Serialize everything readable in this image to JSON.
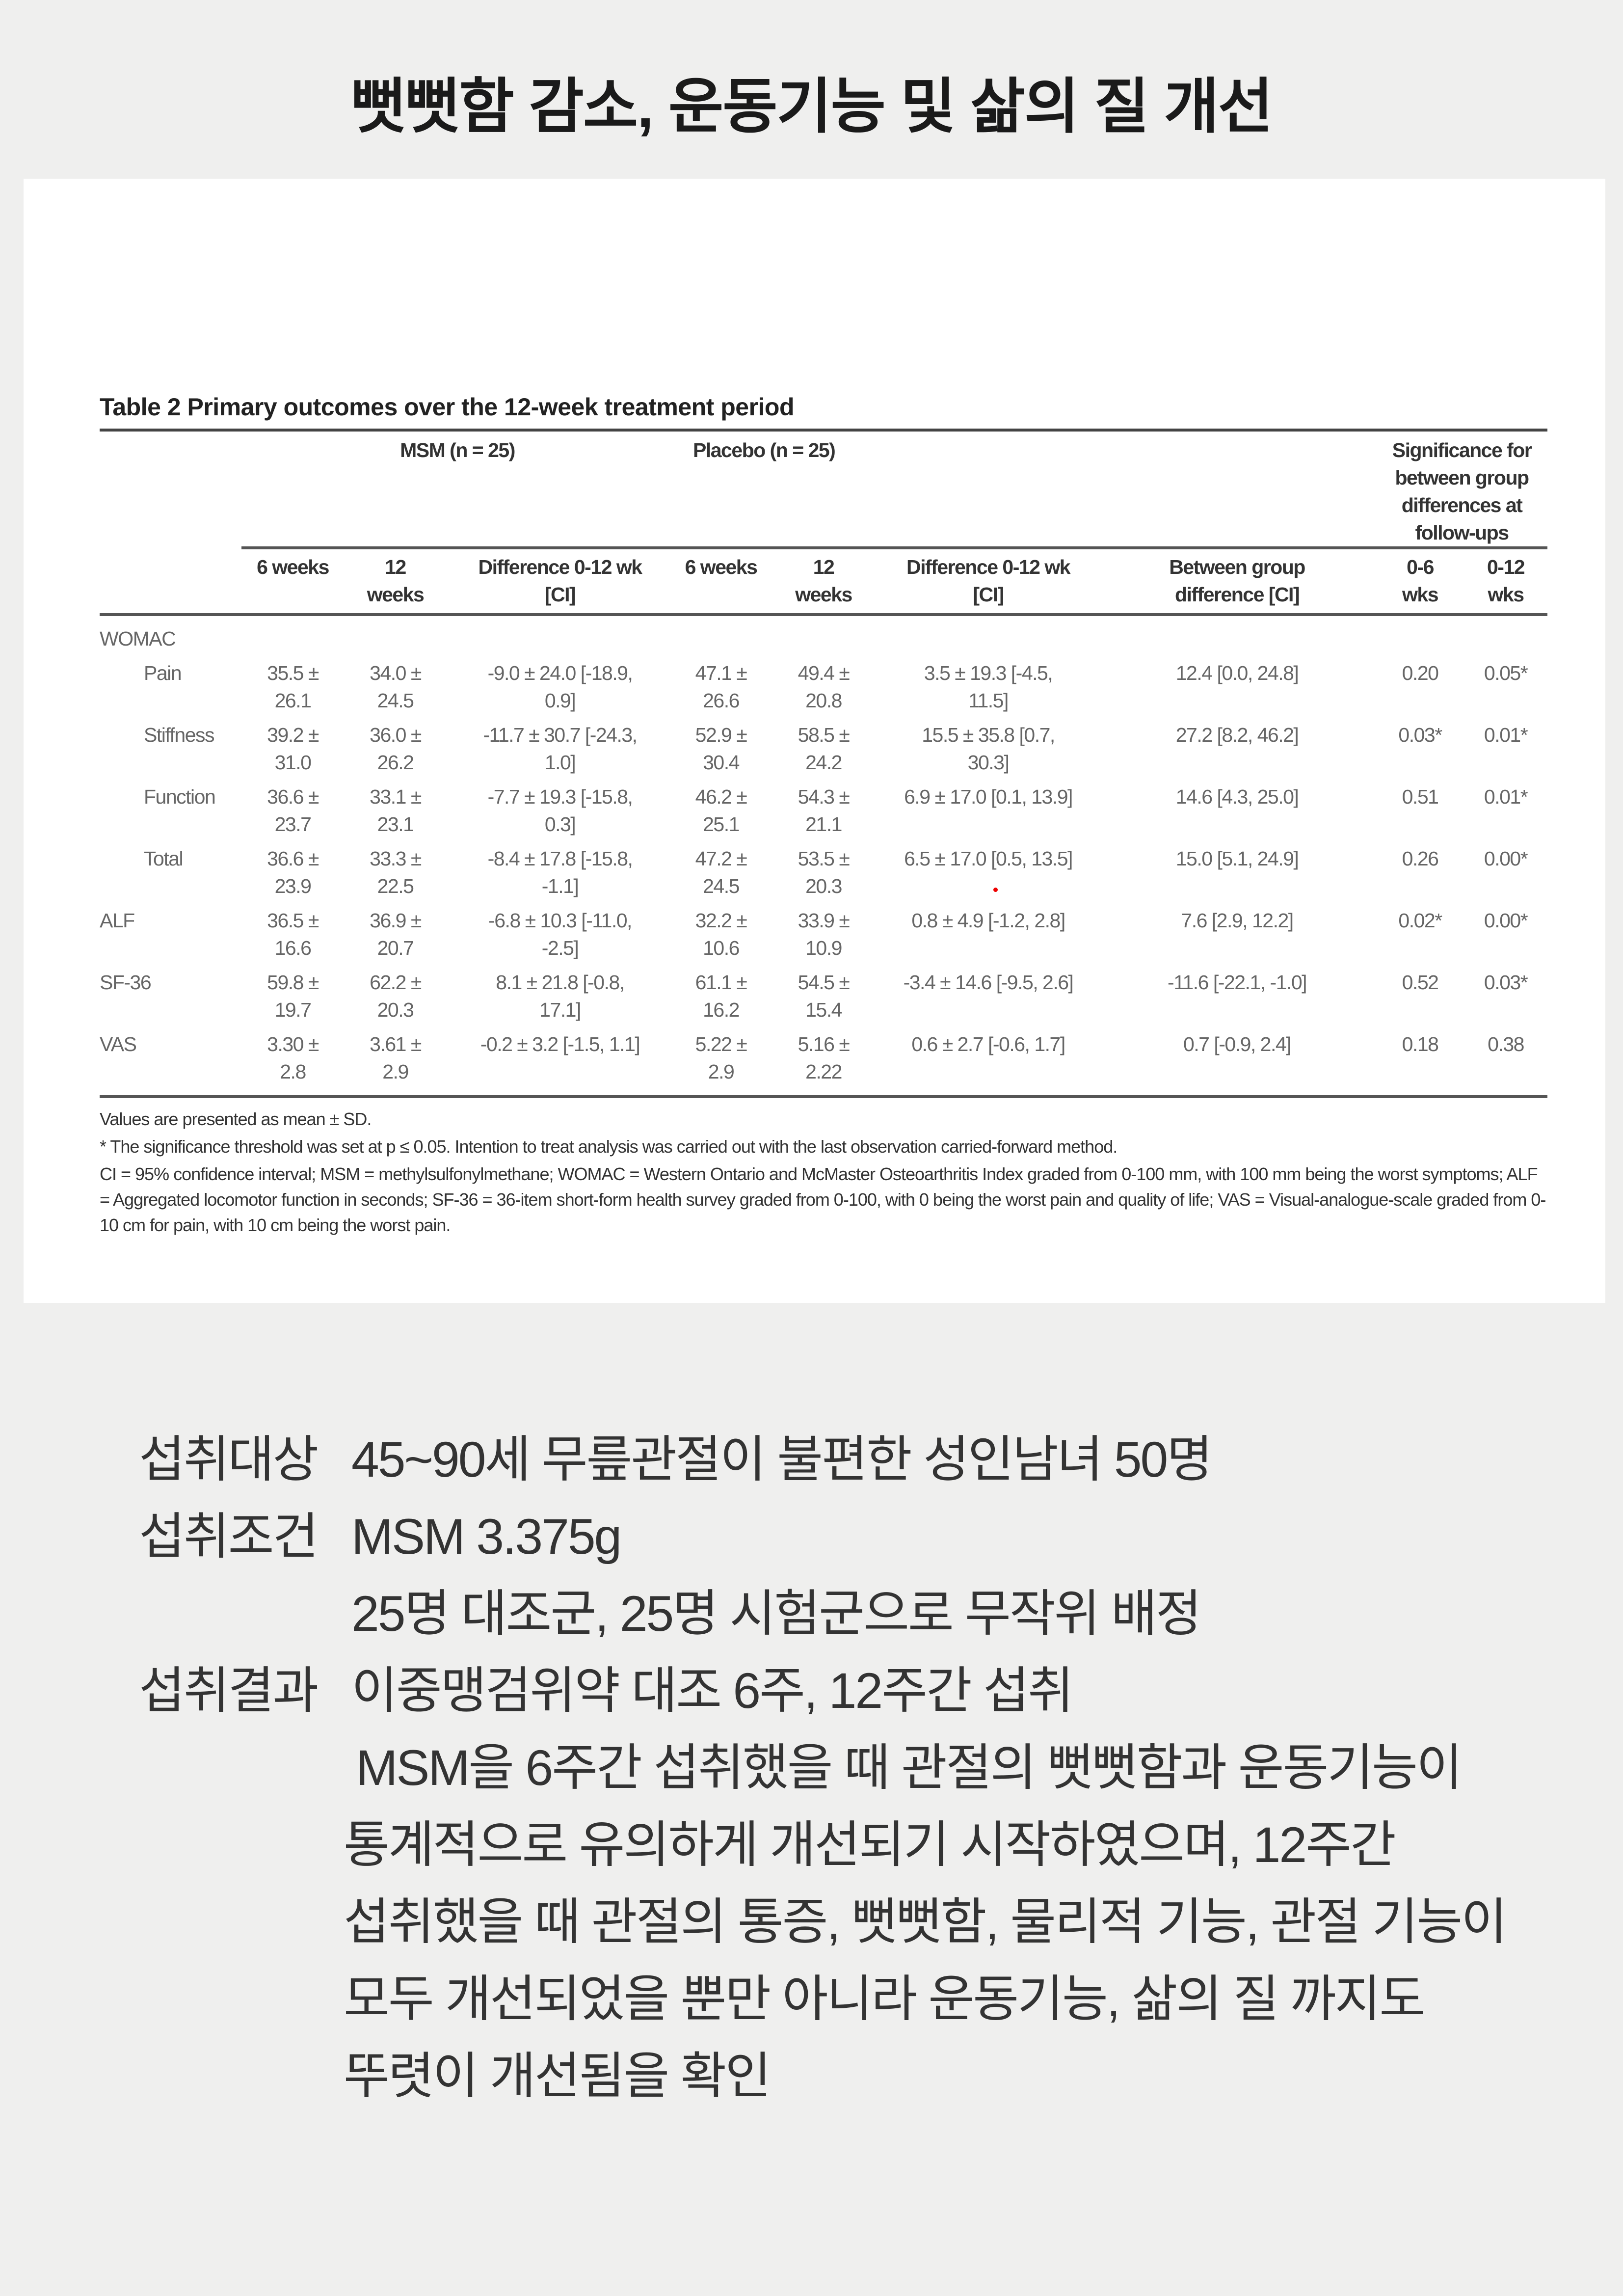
{
  "title": "뻣뻣함 감소, 운동기능 및 삶의 질 개선",
  "table": {
    "caption": "Table 2 Primary outcomes over the 12-week treatment period",
    "group_headers": {
      "msm": "MSM (n = 25)",
      "placebo": "Placebo (n = 25)",
      "significance": "Significance for\nbetween group\ndifferences at\nfollow-ups"
    },
    "columns": [
      "",
      "6 weeks",
      "12\nweeks",
      "Difference 0-12 wk\n[CI]",
      "6 weeks",
      "12\nweeks",
      "Difference 0-12 wk\n[CI]",
      "Between group\ndifference [CI]",
      "0-6\nwks",
      "0-12\nwks"
    ],
    "rows": [
      {
        "label": "WOMAC",
        "sub": false,
        "cells": [
          "",
          "",
          "",
          "",
          "",
          "",
          "",
          "",
          ""
        ]
      },
      {
        "label": "Pain",
        "sub": true,
        "cells": [
          "35.5 ±\n26.1",
          "34.0 ±\n24.5",
          "-9.0 ± 24.0 [-18.9,\n0.9]",
          "47.1 ±\n26.6",
          "49.4 ±\n20.8",
          "3.5 ± 19.3 [-4.5,\n11.5]",
          "12.4 [0.0, 24.8]",
          "0.20",
          "0.05*"
        ]
      },
      {
        "label": "Stiffness",
        "sub": true,
        "cells": [
          "39.2 ±\n31.0",
          "36.0 ±\n26.2",
          "-11.7 ± 30.7 [-24.3,\n1.0]",
          "52.9 ±\n30.4",
          "58.5 ±\n24.2",
          "15.5 ± 35.8 [0.7,\n30.3]",
          "27.2 [8.2, 46.2]",
          "0.03*",
          "0.01*"
        ]
      },
      {
        "label": "Function",
        "sub": true,
        "cells": [
          "36.6 ±\n23.7",
          "33.1 ±\n23.1",
          "-7.7 ± 19.3 [-15.8,\n0.3]",
          "46.2 ±\n25.1",
          "54.3 ±\n21.1",
          "6.9 ± 17.0 [0.1, 13.9]",
          "14.6 [4.3, 25.0]",
          "0.51",
          "0.01*"
        ]
      },
      {
        "label": "Total",
        "sub": true,
        "cells": [
          "36.6 ±\n23.9",
          "33.3 ±\n22.5",
          "-8.4 ± 17.8 [-15.8,\n-1.1]",
          "47.2 ±\n24.5",
          "53.5 ±\n20.3",
          "6.5 ± 17.0 [0.5, 13.5]",
          "15.0 [5.1, 24.9]",
          "0.26",
          "0.00*"
        ]
      },
      {
        "label": "ALF",
        "sub": false,
        "cells": [
          "36.5 ±\n16.6",
          "36.9 ±\n20.7",
          "-6.8 ± 10.3 [-11.0,\n-2.5]",
          "32.2 ±\n10.6",
          "33.9 ±\n10.9",
          "0.8 ± 4.9 [-1.2, 2.8]",
          "7.6 [2.9, 12.2]",
          "0.02*",
          "0.00*"
        ]
      },
      {
        "label": "SF-36",
        "sub": false,
        "cells": [
          "59.8 ±\n19.7",
          "62.2 ±\n20.3",
          "8.1 ± 21.8 [-0.8,\n17.1]",
          "61.1 ±\n16.2",
          "54.5 ±\n15.4",
          "-3.4 ± 14.6 [-9.5, 2.6]",
          "-11.6 [-22.1, -1.0]",
          "0.52",
          "0.03*"
        ]
      },
      {
        "label": "VAS",
        "sub": false,
        "cells": [
          "3.30 ±\n2.8",
          "3.61 ±\n2.9",
          "-0.2 ± 3.2 [-1.5, 1.1]",
          "5.22 ±\n2.9",
          "5.16 ±\n2.22",
          "0.6 ± 2.7 [-0.6, 1.7]",
          "0.7 [-0.9, 2.4]",
          "0.18",
          "0.38"
        ]
      }
    ],
    "notes": [
      "Values are presented as mean ± SD.",
      "* The significance threshold was set at p ≤ 0.05. Intention to treat analysis was carried out with the last observation carried-forward method.",
      "CI = 95% confidence interval; MSM = methylsulfonylmethane; WOMAC = Western Ontario and McMaster Osteoarthritis Index graded from 0-100 mm, with 100 mm being the worst symptoms; ALF = Aggregated locomotor function in seconds; SF-36 = 36-item short-form health survey graded from 0-100, with 0 being the worst pain and quality of life; VAS = Visual-analogue-scale graded from 0-10 cm for pain, with 10 cm being the worst pain."
    ]
  },
  "summary": [
    {
      "label": "섭취대상",
      "value": "45~90세 무릎관절이 불편한 성인남녀 50명"
    },
    {
      "label": "섭취조건",
      "value": "MSM 3.375g"
    },
    {
      "label": "",
      "value": "25명 대조군, 25명 시험군으로 무작위 배정"
    },
    {
      "label": "섭취결과",
      "value": "이중맹검위약 대조 6주, 12주간 섭취"
    },
    {
      "label": "",
      "value": " MSM을 6주간 섭취했을 때 관절의 뻣뻣함과 운동기능이",
      "cont": true
    },
    {
      "label": "",
      "value": "통계적으로 유의하게 개선되기 시작하였으며, 12주간",
      "cont": true
    },
    {
      "label": "",
      "value": "섭취했을 때 관절의 통증, 뻣뻣함, 물리적 기능, 관절 기능이",
      "cont": true
    },
    {
      "label": "",
      "value": "모두 개선되었을 뿐만 아니라 운동기능, 삶의 질 까지도",
      "cont": true
    },
    {
      "label": "",
      "value": "뚜렷이 개선됨을 확인",
      "cont": true
    }
  ]
}
